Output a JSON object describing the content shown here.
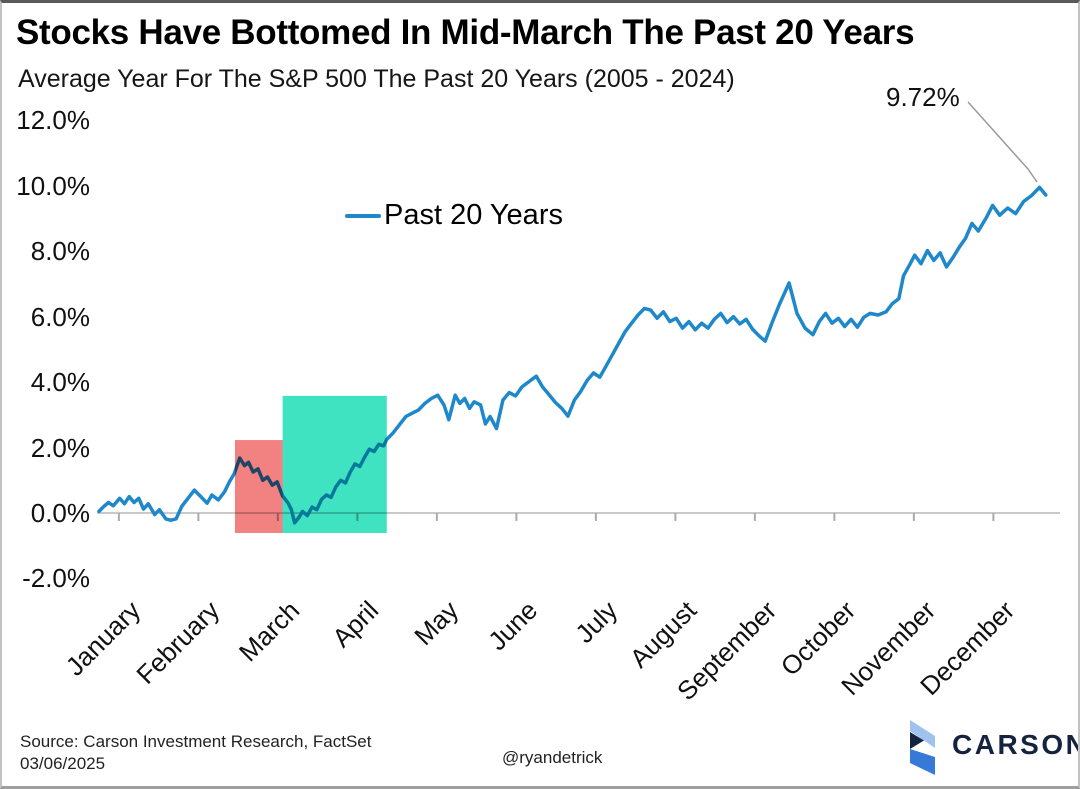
{
  "header": {
    "title": "Stocks Have Bottomed In Mid-March The Past 20 Years",
    "subtitle": "Average Year For The S&P 500 The Past 20 Years (2005 - 2024)"
  },
  "legend": {
    "label": "Past 20 Years"
  },
  "footer": {
    "source_line1": "Source: Carson Investment Research, FactSet",
    "source_line2": "03/06/2025",
    "handle": "@ryandetrick",
    "brand": "CARSON"
  },
  "chart_data": {
    "type": "line",
    "title": "Stocks Have Bottomed In Mid-March The Past 20 Years",
    "subtitle": "Average Year For The S&P 500 The Past 20 Years (2005 - 2024)",
    "xlabel": "",
    "ylabel": "",
    "x_unit": "month_fraction (0 = Jan 1, 12 = Dec 31)",
    "x_months": [
      "January",
      "February",
      "March",
      "April",
      "May",
      "June",
      "July",
      "August",
      "September",
      "October",
      "November",
      "December"
    ],
    "ylim": [
      -2,
      12
    ],
    "yticks": [
      {
        "value": 12,
        "label": "12.0%"
      },
      {
        "value": 10,
        "label": "10.0%"
      },
      {
        "value": 8,
        "label": "8.0%"
      },
      {
        "value": 6,
        "label": "6.0%"
      },
      {
        "value": 4,
        "label": "4.0%"
      },
      {
        "value": 2,
        "label": "2.0%"
      },
      {
        "value": 0,
        "label": "0.0%"
      },
      {
        "value": -2,
        "label": "-2.0%"
      }
    ],
    "grid": "zero-line-only",
    "legend_position": "upper-center-left",
    "annotation": {
      "text": "9.72%",
      "point_month": 11.83,
      "point_pct": 9.95,
      "final_value_pct": 9.72
    },
    "highlight_boxes": [
      {
        "name": "selloff",
        "color": "#F28181",
        "x0_month": 1.71,
        "x1_month": 2.31,
        "y0_pct": -0.61,
        "y1_pct": 2.23
      },
      {
        "name": "recovery",
        "color": "#3FE2C1",
        "x0_month": 2.31,
        "x1_month": 3.62,
        "y0_pct": -0.61,
        "y1_pct": 3.58
      }
    ],
    "colors": {
      "line": "#1E88CB",
      "axis": "#C9C9C9",
      "tick": "#ABABAB",
      "callout": "#9A9A9A",
      "brand_navy": "#16233E",
      "brand_light_blue": "#9FC2EE",
      "brand_blue": "#3679D6"
    },
    "series": [
      {
        "name": "Past 20 Years",
        "color": "#1E88CB",
        "points": [
          [
            0.0,
            0.05
          ],
          [
            0.06,
            0.2
          ],
          [
            0.12,
            0.32
          ],
          [
            0.18,
            0.22
          ],
          [
            0.26,
            0.45
          ],
          [
            0.32,
            0.28
          ],
          [
            0.38,
            0.5
          ],
          [
            0.44,
            0.32
          ],
          [
            0.5,
            0.45
          ],
          [
            0.56,
            0.12
          ],
          [
            0.62,
            0.28
          ],
          [
            0.7,
            -0.05
          ],
          [
            0.76,
            0.1
          ],
          [
            0.84,
            -0.18
          ],
          [
            0.9,
            -0.22
          ],
          [
            0.97,
            -0.18
          ],
          [
            1.04,
            0.2
          ],
          [
            1.12,
            0.45
          ],
          [
            1.2,
            0.7
          ],
          [
            1.28,
            0.5
          ],
          [
            1.36,
            0.3
          ],
          [
            1.42,
            0.55
          ],
          [
            1.5,
            0.4
          ],
          [
            1.58,
            0.65
          ],
          [
            1.64,
            0.95
          ],
          [
            1.7,
            1.2
          ],
          [
            1.77,
            1.68
          ],
          [
            1.83,
            1.45
          ],
          [
            1.88,
            1.55
          ],
          [
            1.94,
            1.25
          ],
          [
            2.0,
            1.35
          ],
          [
            2.06,
            1.0
          ],
          [
            2.12,
            1.1
          ],
          [
            2.18,
            0.85
          ],
          [
            2.24,
            0.95
          ],
          [
            2.31,
            0.52
          ],
          [
            2.38,
            0.3
          ],
          [
            2.42,
            0.1
          ],
          [
            2.46,
            -0.3
          ],
          [
            2.52,
            -0.12
          ],
          [
            2.56,
            0.05
          ],
          [
            2.62,
            -0.08
          ],
          [
            2.68,
            0.18
          ],
          [
            2.74,
            0.1
          ],
          [
            2.8,
            0.42
          ],
          [
            2.86,
            0.55
          ],
          [
            2.92,
            0.48
          ],
          [
            2.98,
            0.8
          ],
          [
            3.04,
            1.0
          ],
          [
            3.1,
            0.92
          ],
          [
            3.16,
            1.25
          ],
          [
            3.22,
            1.5
          ],
          [
            3.28,
            1.42
          ],
          [
            3.34,
            1.7
          ],
          [
            3.4,
            1.95
          ],
          [
            3.46,
            1.88
          ],
          [
            3.52,
            2.1
          ],
          [
            3.58,
            2.05
          ],
          [
            3.62,
            2.25
          ],
          [
            3.7,
            2.45
          ],
          [
            3.78,
            2.7
          ],
          [
            3.86,
            2.95
          ],
          [
            3.94,
            3.05
          ],
          [
            4.02,
            3.15
          ],
          [
            4.1,
            3.35
          ],
          [
            4.18,
            3.5
          ],
          [
            4.26,
            3.6
          ],
          [
            4.34,
            3.3
          ],
          [
            4.4,
            2.85
          ],
          [
            4.48,
            3.6
          ],
          [
            4.54,
            3.35
          ],
          [
            4.6,
            3.5
          ],
          [
            4.66,
            3.2
          ],
          [
            4.72,
            3.4
          ],
          [
            4.8,
            3.3
          ],
          [
            4.86,
            2.72
          ],
          [
            4.92,
            2.95
          ],
          [
            5.0,
            2.58
          ],
          [
            5.08,
            3.45
          ],
          [
            5.16,
            3.68
          ],
          [
            5.24,
            3.58
          ],
          [
            5.32,
            3.85
          ],
          [
            5.4,
            4.0
          ],
          [
            5.5,
            4.18
          ],
          [
            5.58,
            3.85
          ],
          [
            5.66,
            3.62
          ],
          [
            5.74,
            3.38
          ],
          [
            5.82,
            3.2
          ],
          [
            5.9,
            2.96
          ],
          [
            5.98,
            3.45
          ],
          [
            6.06,
            3.72
          ],
          [
            6.14,
            4.05
          ],
          [
            6.22,
            4.28
          ],
          [
            6.3,
            4.15
          ],
          [
            6.38,
            4.5
          ],
          [
            6.46,
            4.85
          ],
          [
            6.54,
            5.2
          ],
          [
            6.62,
            5.55
          ],
          [
            6.7,
            5.8
          ],
          [
            6.78,
            6.05
          ],
          [
            6.86,
            6.25
          ],
          [
            6.94,
            6.2
          ],
          [
            7.02,
            5.95
          ],
          [
            7.1,
            6.15
          ],
          [
            7.18,
            5.85
          ],
          [
            7.26,
            5.95
          ],
          [
            7.34,
            5.65
          ],
          [
            7.42,
            5.85
          ],
          [
            7.5,
            5.6
          ],
          [
            7.58,
            5.8
          ],
          [
            7.66,
            5.65
          ],
          [
            7.74,
            5.92
          ],
          [
            7.82,
            6.1
          ],
          [
            7.9,
            5.82
          ],
          [
            7.98,
            6.0
          ],
          [
            8.06,
            5.78
          ],
          [
            8.14,
            5.92
          ],
          [
            8.22,
            5.62
          ],
          [
            8.3,
            5.42
          ],
          [
            8.38,
            5.25
          ],
          [
            8.46,
            5.78
          ],
          [
            8.56,
            6.38
          ],
          [
            8.68,
            7.03
          ],
          [
            8.78,
            6.1
          ],
          [
            8.88,
            5.65
          ],
          [
            8.98,
            5.45
          ],
          [
            9.06,
            5.85
          ],
          [
            9.14,
            6.1
          ],
          [
            9.22,
            5.8
          ],
          [
            9.3,
            5.95
          ],
          [
            9.38,
            5.7
          ],
          [
            9.46,
            5.92
          ],
          [
            9.54,
            5.68
          ],
          [
            9.62,
            5.98
          ],
          [
            9.7,
            6.1
          ],
          [
            9.8,
            6.05
          ],
          [
            9.9,
            6.15
          ],
          [
            9.98,
            6.4
          ],
          [
            10.06,
            6.55
          ],
          [
            10.12,
            7.25
          ],
          [
            10.2,
            7.6
          ],
          [
            10.26,
            7.88
          ],
          [
            10.34,
            7.62
          ],
          [
            10.42,
            8.02
          ],
          [
            10.5,
            7.72
          ],
          [
            10.58,
            7.95
          ],
          [
            10.66,
            7.52
          ],
          [
            10.74,
            7.8
          ],
          [
            10.82,
            8.12
          ],
          [
            10.9,
            8.4
          ],
          [
            10.98,
            8.85
          ],
          [
            11.06,
            8.62
          ],
          [
            11.16,
            9.02
          ],
          [
            11.24,
            9.4
          ],
          [
            11.33,
            9.1
          ],
          [
            11.43,
            9.32
          ],
          [
            11.53,
            9.15
          ],
          [
            11.63,
            9.52
          ],
          [
            11.73,
            9.7
          ],
          [
            11.83,
            9.95
          ],
          [
            11.91,
            9.72
          ]
        ]
      }
    ]
  }
}
